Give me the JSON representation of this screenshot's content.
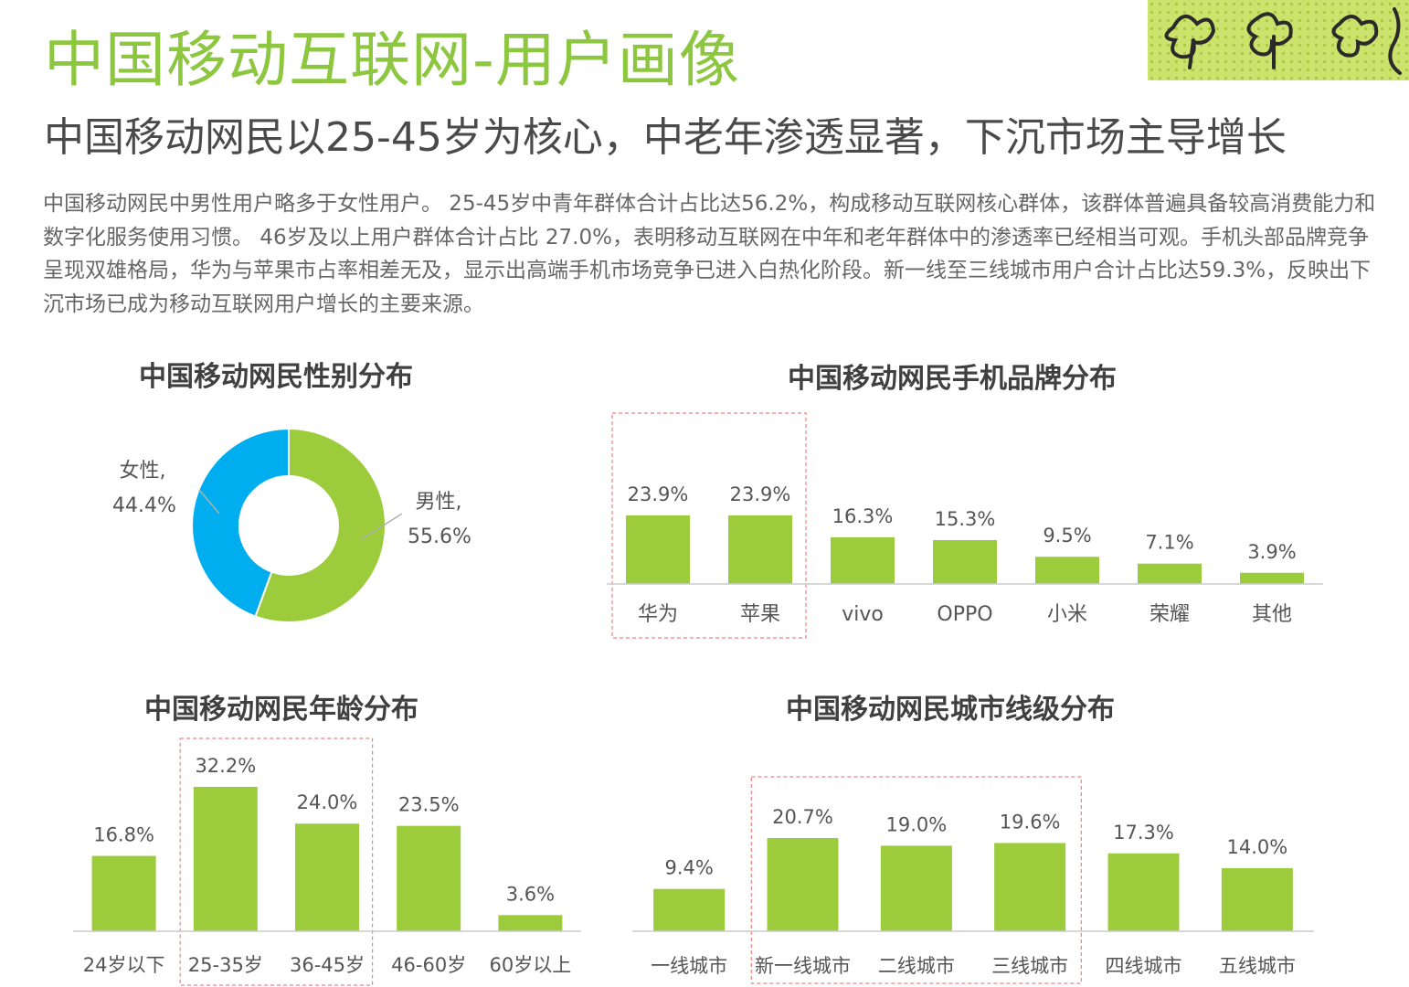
{
  "header": {
    "title": "中国移动互联网-用户画像",
    "subtitle": "中国移动网民以25-45岁为核心，中老年渗透显著，下沉市场主导增长",
    "summary": "中国移动网民中男性用户略多于女性用户。 25-45岁中青年群体合计占比达56.2%，构成移动互联网核心群体，该群体普遍具备较高消费能力和数字化服务使用习惯。 46岁及以上用户群体合计占比 27.0%，表明移动互联网在中年和老年群体中的渗透率已经相当可观。手机头部品牌竞争呈现双雄格局，华为与苹果市占率相差无及，显示出高端手机市场竞争已进入白热化阶段。新一线至三线城市用户合计占比达59.3%，反映出下沉市场已成为移动互联网用户增长的主要来源。"
  },
  "colors": {
    "title_green": "#8dc63f",
    "bar_green": "#9ccc3c",
    "male_green": "#9ccc3c",
    "female_blue": "#00aeef",
    "highlight_box": "#f08080"
  },
  "decor": {
    "icon": "clover-doodle-icon"
  },
  "chart_data": [
    {
      "id": "gender",
      "type": "pie",
      "title": "中国移动网民性别分布",
      "slices": [
        {
          "label": "男性,",
          "value": 55.6,
          "value_label": "55.6%",
          "color": "#9ccc3c"
        },
        {
          "label": "女性,",
          "value": 44.4,
          "value_label": "44.4%",
          "color": "#00aeef"
        }
      ]
    },
    {
      "id": "brand",
      "type": "bar",
      "title": "中国移动网民手机品牌分布",
      "categories": [
        "华为",
        "苹果",
        "vivo",
        "OPPO",
        "小米",
        "荣耀",
        "其他"
      ],
      "values": [
        23.9,
        23.9,
        16.3,
        15.3,
        9.5,
        7.1,
        3.9
      ],
      "value_labels": [
        "23.9%",
        "23.9%",
        "16.3%",
        "15.3%",
        "9.5%",
        "7.1%",
        "3.9%"
      ],
      "highlight": [
        0,
        1
      ],
      "ylim": [
        0,
        25
      ]
    },
    {
      "id": "age",
      "type": "bar",
      "title": "中国移动网民年龄分布",
      "categories": [
        "24岁以下",
        "25-35岁",
        "36-45岁",
        "46-60岁",
        "60岁以上"
      ],
      "values": [
        16.8,
        32.2,
        24.0,
        23.5,
        3.6
      ],
      "value_labels": [
        "16.8%",
        "32.2%",
        "24.0%",
        "23.5%",
        "3.6%"
      ],
      "highlight": [
        1,
        2
      ],
      "ylim": [
        0,
        34
      ]
    },
    {
      "id": "city",
      "type": "bar",
      "title": "中国移动网民城市线级分布",
      "categories": [
        "一线城市",
        "新一线城市",
        "二线城市",
        "三线城市",
        "四线城市",
        "五线城市"
      ],
      "values": [
        9.4,
        20.7,
        19.0,
        19.6,
        17.3,
        14.0
      ],
      "value_labels": [
        "9.4%",
        "20.7%",
        "19.0%",
        "19.6%",
        "17.3%",
        "14.0%"
      ],
      "highlight": [
        1,
        2,
        3
      ],
      "ylim": [
        0,
        22
      ]
    }
  ]
}
